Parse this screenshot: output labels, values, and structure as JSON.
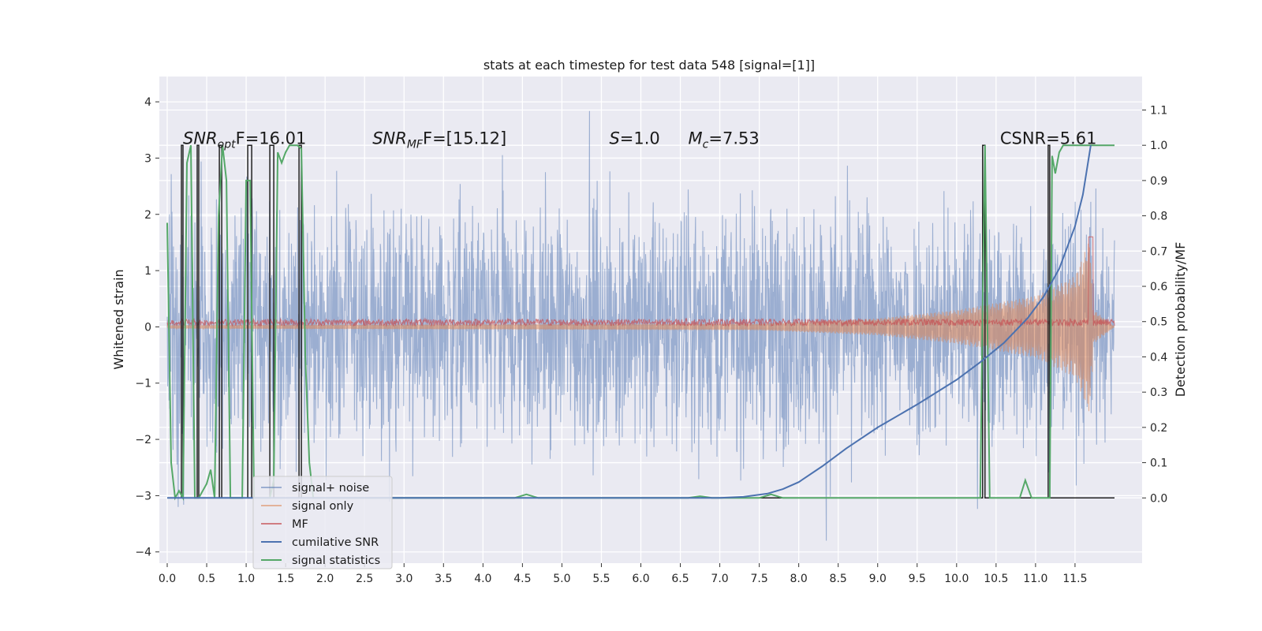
{
  "chart_data": {
    "type": "line",
    "title": "stats at each timestep for test data 548 [signal=[1]]",
    "ylabel": "Whitened strain",
    "y2label": "Detection probability/MF",
    "xlim": [
      -0.1,
      12.35
    ],
    "ylim": [
      -4.2,
      4.45
    ],
    "y2lim": [
      -0.185,
      1.195
    ],
    "x_ticks": [
      0.0,
      0.5,
      1.0,
      1.5,
      2.0,
      2.5,
      3.0,
      3.5,
      4.0,
      4.5,
      5.0,
      5.5,
      6.0,
      6.5,
      7.0,
      7.5,
      8.0,
      8.5,
      9.0,
      9.5,
      10.0,
      10.5,
      11.0,
      11.5
    ],
    "x_tick_labels": [
      "0.0",
      "0.5",
      "1.0",
      "1.5",
      "2.0",
      "2.5",
      "3.0",
      "3.5",
      "4.0",
      "4.5",
      "5.0",
      "5.5",
      "6.0",
      "6.5",
      "7.0",
      "7.5",
      "8.0",
      "8.5",
      "9.0",
      "9.5",
      "10.0",
      "10.5",
      "11.0",
      "11.5"
    ],
    "y_ticks": [
      -4,
      -3,
      -2,
      -1,
      0,
      1,
      2,
      3,
      4
    ],
    "y_tick_labels": [
      "−4",
      "−3",
      "−2",
      "−1",
      "0",
      "1",
      "2",
      "3",
      "4"
    ],
    "y2_ticks": [
      0.0,
      0.1,
      0.2,
      0.3,
      0.4,
      0.5,
      0.6,
      0.7,
      0.8,
      0.9,
      1.0,
      1.1
    ],
    "y2_tick_labels": [
      "0.0",
      "0.1",
      "0.2",
      "0.3",
      "0.4",
      "0.5",
      "0.6",
      "0.7",
      "0.8",
      "0.9",
      "1.0",
      "1.1"
    ],
    "grid": true,
    "legend_placement": "lower-left",
    "annotations": [
      {
        "text": "SNR_opt=16.01",
        "x": 0.2,
        "y": 3.22
      },
      {
        "text": "SNR_MF=[15.12]",
        "x": 2.6,
        "y": 3.22
      },
      {
        "text": "S=1.0",
        "x": 5.6,
        "y": 3.22
      },
      {
        "text": "M_c=7.53",
        "x": 6.6,
        "y": 3.22
      },
      {
        "text": "CSNR=5.61",
        "x": 10.55,
        "y": 3.22
      }
    ],
    "series": [
      {
        "name": "signal+ noise",
        "axis": "left",
        "color": "#4c72b0",
        "description_values": {
          "x_range": [
            0.0,
            12.0
          ],
          "amplitude_std": 1.0,
          "peak_max": 4.1,
          "peak_min": -3.8
        }
      },
      {
        "name": "signal only",
        "axis": "left",
        "color": "#dd8452",
        "description_values": {
          "x_range": [
            0.0,
            12.0
          ],
          "envelope": [
            [
              0.0,
              0.03
            ],
            [
              7.5,
              0.06
            ],
            [
              9.0,
              0.15
            ],
            [
              10.0,
              0.3
            ],
            [
              11.0,
              0.55
            ],
            [
              11.5,
              0.9
            ],
            [
              11.7,
              1.6
            ]
          ]
        }
      },
      {
        "name": "MF",
        "axis": "left",
        "color": "#c44e52",
        "description_values": {
          "x_range": [
            0.0,
            12.0
          ],
          "baseline": 0.08,
          "spread": 0.06,
          "peak": [
            11.7,
            1.6
          ]
        }
      },
      {
        "name": "cumilative SNR",
        "axis": "right",
        "color": "#4c72b0",
        "x": [
          0.0,
          7.0,
          7.3,
          7.6,
          7.8,
          8.0,
          8.3,
          8.6,
          9.0,
          9.5,
          10.0,
          10.3,
          10.6,
          10.9,
          11.1,
          11.3,
          11.5,
          11.6,
          11.7
        ],
        "y": [
          0.0,
          0.0,
          0.003,
          0.012,
          0.025,
          0.045,
          0.09,
          0.14,
          0.2,
          0.265,
          0.335,
          0.385,
          0.44,
          0.51,
          0.57,
          0.65,
          0.77,
          0.86,
          1.0
        ]
      },
      {
        "name": "signal statistics",
        "axis": "right",
        "color": "#55a868",
        "x": [
          0.0,
          0.05,
          0.1,
          0.15,
          0.2,
          0.25,
          0.3,
          0.35,
          0.4,
          0.45,
          0.5,
          0.55,
          0.6,
          0.65,
          0.7,
          0.75,
          0.8,
          0.85,
          0.9,
          0.95,
          1.0,
          1.05,
          1.1,
          1.15,
          1.2,
          1.25,
          1.3,
          1.35,
          1.4,
          1.45,
          1.5,
          1.55,
          1.6,
          1.65,
          1.7,
          1.75,
          1.8,
          1.85,
          1.9,
          2.0,
          4.4,
          4.55,
          4.7,
          4.9,
          5.0,
          6.6,
          6.75,
          6.9,
          7.5,
          7.65,
          7.8,
          10.3,
          10.33,
          10.36,
          10.39,
          10.42,
          10.45,
          10.5,
          10.8,
          10.87,
          10.95,
          11.0,
          11.1,
          11.15,
          11.18,
          11.21,
          11.25,
          11.3,
          11.35,
          11.4,
          11.5,
          11.7,
          12.0
        ],
        "y": [
          0.78,
          0.1,
          0.0,
          0.02,
          0.0,
          0.95,
          1.0,
          0.0,
          0.0,
          0.02,
          0.04,
          0.08,
          0.0,
          0.8,
          1.0,
          0.9,
          0.0,
          0.0,
          0.0,
          0.0,
          0.9,
          0.9,
          0.0,
          0.0,
          0.0,
          0.0,
          0.0,
          0.05,
          0.98,
          0.95,
          0.98,
          1.0,
          1.0,
          1.0,
          0.99,
          0.4,
          0.1,
          0.0,
          0.0,
          0.0,
          0.0,
          0.01,
          0.0,
          0.0,
          0.0,
          0.0,
          0.005,
          0.0,
          0.0,
          0.01,
          0.0,
          0.0,
          0.55,
          1.0,
          0.5,
          0.0,
          0.0,
          0.0,
          0.0,
          0.05,
          0.0,
          0.0,
          0.0,
          0.0,
          0.0,
          0.97,
          0.92,
          0.98,
          1.0,
          1.0,
          1.0,
          1.0,
          1.0
        ]
      },
      {
        "name": "",
        "axis": "right",
        "color": "#222222",
        "description_values": {
          "step_edges": [
            [
              0.18,
              0.2
            ],
            [
              0.38,
              0.4
            ],
            [
              0.66,
              0.69
            ],
            [
              1.02,
              1.07
            ],
            [
              1.3,
              1.35
            ],
            [
              1.67,
              1.7
            ],
            [
              10.33,
              10.36
            ],
            [
              11.16,
              11.18
            ]
          ]
        }
      }
    ]
  }
}
